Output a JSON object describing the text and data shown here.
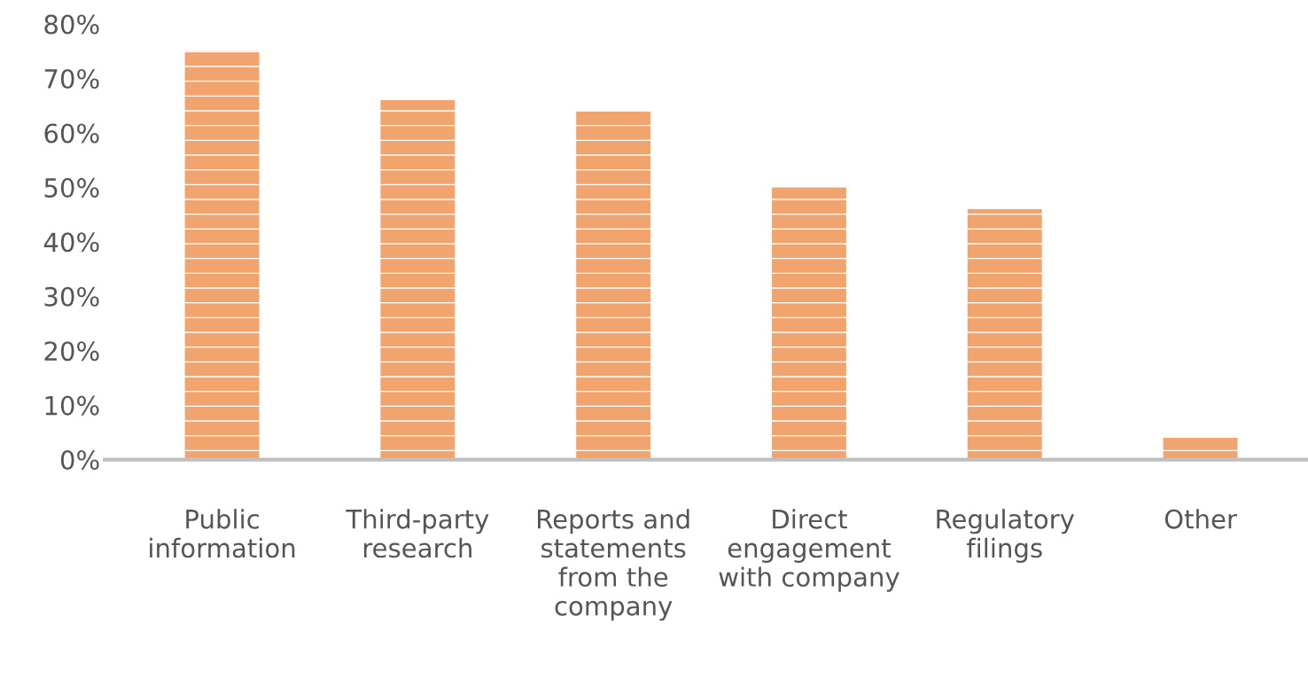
{
  "chart_data": {
    "type": "bar",
    "categories": [
      "Public\ninformation",
      "Third-party\nresearch",
      "Reports and\nstatements\nfrom the\ncompany",
      "Direct\nengagement\nwith company",
      "Regulatory\nfilings",
      "Other"
    ],
    "values": [
      75,
      66,
      64,
      50,
      46,
      4
    ],
    "color": "#f2a46e",
    "ylim": [
      0,
      80
    ],
    "yticks": [
      {
        "value": 0,
        "label": "0%"
      },
      {
        "value": 10,
        "label": "10%"
      },
      {
        "value": 20,
        "label": "20%"
      },
      {
        "value": 30,
        "label": "30%"
      },
      {
        "value": 40,
        "label": "40%"
      },
      {
        "value": 50,
        "label": "50%"
      },
      {
        "value": 60,
        "label": "60%"
      },
      {
        "value": 70,
        "label": "70%"
      },
      {
        "value": 80,
        "label": "80%"
      }
    ],
    "grid": false
  }
}
